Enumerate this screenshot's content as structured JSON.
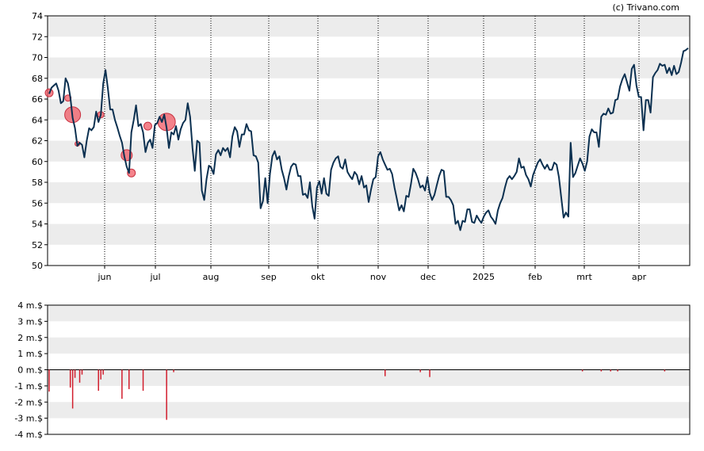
{
  "copyright": "(c) Trivano.com",
  "colors": {
    "price_line": "#0b3050",
    "band": "#ececec",
    "insider_marker": "#f05a64",
    "volume_bar": "#d21e2d",
    "gridline": "#000000"
  },
  "chart_data": [
    {
      "type": "line",
      "title": "",
      "ylim": [
        50,
        74
      ],
      "y_ticks": [
        "50",
        "52",
        "54",
        "56",
        "58",
        "60",
        "62",
        "64",
        "66",
        "68",
        "70",
        "72",
        "74"
      ],
      "x_ticks": [
        "jun",
        "jul",
        "aug",
        "sep",
        "okt",
        "nov",
        "dec",
        "2025",
        "feb",
        "mrt",
        "apr"
      ],
      "grid": "alternating horizontal bands, dotted vertical month lines",
      "series": [
        {
          "values": [
            66.5,
            67.1,
            67.3,
            67.5,
            66.8,
            65.6,
            65.8,
            68.0,
            67.5,
            66.2,
            64.2,
            63.2,
            61.5,
            61.8,
            61.6,
            60.4,
            62.0,
            63.2,
            63.0,
            63.3,
            64.8,
            63.8,
            64.5,
            67.5,
            68.8,
            67.0,
            65.0,
            65.0,
            64.0,
            63.3,
            62.5,
            61.8,
            60.5,
            59.5,
            58.9,
            62.8,
            64.0,
            65.4,
            63.4,
            63.6,
            62.8,
            60.9,
            61.8,
            62.1,
            61.3,
            63.5,
            63.7,
            64.3,
            63.8,
            64.5,
            63.2,
            61.3,
            62.8,
            62.6,
            63.4,
            62.1,
            63.1,
            63.7,
            64.0,
            65.6,
            64.3,
            61.3,
            59.1,
            62.0,
            61.8,
            57.2,
            56.3,
            58.3,
            59.6,
            59.4,
            58.8,
            60.7,
            61.1,
            60.6,
            61.3,
            61.0,
            61.3,
            60.4,
            62.4,
            63.3,
            62.9,
            61.4,
            62.6,
            62.6,
            63.6,
            63.0,
            62.9,
            60.6,
            60.5,
            59.9,
            55.5,
            56.2,
            58.4,
            56.0,
            58.8,
            60.5,
            61.0,
            60.2,
            60.5,
            59.2,
            58.4,
            57.3,
            58.6,
            59.5,
            59.8,
            59.7,
            58.6,
            58.6,
            56.8,
            56.9,
            56.5,
            58.0,
            55.7,
            54.5,
            57.5,
            58.1,
            56.9,
            58.4,
            56.9,
            56.7,
            59.2,
            59.9,
            60.3,
            60.5,
            59.5,
            59.3,
            60.2,
            59.0,
            58.6,
            58.3,
            59.0,
            58.7,
            57.8,
            58.6,
            57.5,
            57.7,
            56.1,
            57.3,
            58.3,
            58.5,
            60.5,
            60.9,
            60.2,
            59.7,
            59.2,
            59.3,
            58.8,
            57.5,
            56.4,
            55.3,
            55.8,
            55.2,
            56.7,
            56.6,
            57.8,
            59.3,
            58.9,
            58.3,
            57.5,
            57.7,
            57.2,
            58.5,
            57.0,
            56.3,
            56.8,
            57.7,
            58.6,
            59.2,
            59.1,
            56.6,
            56.6,
            56.3,
            55.8,
            54.0,
            54.3,
            53.4,
            54.3,
            54.2,
            55.4,
            55.4,
            54.2,
            54.1,
            54.8,
            54.4,
            54.1,
            54.7,
            55.1,
            55.3,
            54.7,
            54.4,
            54.0,
            55.3,
            56.0,
            56.5,
            57.5,
            58.3,
            58.6,
            58.3,
            58.6,
            59.0,
            60.3,
            59.4,
            59.5,
            58.7,
            58.3,
            57.6,
            58.7,
            59.3,
            59.9,
            60.2,
            59.7,
            59.3,
            59.7,
            59.2,
            59.2,
            59.9,
            59.7,
            58.5,
            56.5,
            54.6,
            55.1,
            54.7,
            61.8,
            58.5,
            58.9,
            59.6,
            60.3,
            59.8,
            59.1,
            60.0,
            62.4,
            63.1,
            62.8,
            62.8,
            61.4,
            64.3,
            64.6,
            64.5,
            65.1,
            64.6,
            64.7,
            65.9,
            66.0,
            67.2,
            67.9,
            68.4,
            67.6,
            66.8,
            68.9,
            69.3,
            67.3,
            66.2,
            66.2,
            63.0,
            65.9,
            65.9,
            64.7,
            68.1,
            68.5,
            68.8,
            69.4,
            69.2,
            69.3,
            68.5,
            69.0,
            68.3,
            69.2,
            68.4,
            68.6,
            69.5,
            70.6,
            70.7,
            70.9
          ]
        }
      ],
      "insider_markers": [
        {
          "index": 0,
          "y": 66.6
        },
        {
          "index": 8,
          "y": 66.1
        },
        {
          "index": 10,
          "y": 64.5
        },
        {
          "index": 12,
          "y": 61.7
        },
        {
          "index": 22,
          "y": 64.5
        },
        {
          "index": 33,
          "y": 60.6
        },
        {
          "index": 35,
          "y": 58.9
        },
        {
          "index": 42,
          "y": 63.4
        },
        {
          "index": 50,
          "y": 63.8
        }
      ]
    },
    {
      "type": "bar",
      "title": "",
      "ylim": [
        -4,
        4
      ],
      "y_ticks": [
        "-4 m.$",
        "-3 m.$",
        "-2 m.$",
        "-1 m.$",
        "0 m.$",
        "1 m.$",
        "2 m.$",
        "3 m.$",
        "4 m.$"
      ],
      "y_tick_values": [
        -4,
        -3,
        -2,
        -1,
        0,
        1,
        2,
        3,
        4
      ],
      "grid": "alternating horizontal bands",
      "bars": [
        {
          "index": 0,
          "value": -1.35
        },
        {
          "index": 9,
          "value": -1.1
        },
        {
          "index": 10,
          "value": -2.4
        },
        {
          "index": 11,
          "value": -0.5
        },
        {
          "index": 13,
          "value": -0.8
        },
        {
          "index": 14,
          "value": -0.3
        },
        {
          "index": 21,
          "value": -1.3
        },
        {
          "index": 22,
          "value": -0.6
        },
        {
          "index": 23,
          "value": -0.3
        },
        {
          "index": 31,
          "value": -1.8
        },
        {
          "index": 34,
          "value": -1.2
        },
        {
          "index": 40,
          "value": -1.3
        },
        {
          "index": 50,
          "value": -3.1
        },
        {
          "index": 53,
          "value": -0.15
        },
        {
          "index": 143,
          "value": -0.4
        },
        {
          "index": 158,
          "value": -0.15
        },
        {
          "index": 162,
          "value": -0.45
        },
        {
          "index": 227,
          "value": -0.1
        },
        {
          "index": 235,
          "value": -0.1
        },
        {
          "index": 239,
          "value": -0.1
        },
        {
          "index": 242,
          "value": -0.1
        },
        {
          "index": 262,
          "value": -0.1
        }
      ]
    }
  ]
}
